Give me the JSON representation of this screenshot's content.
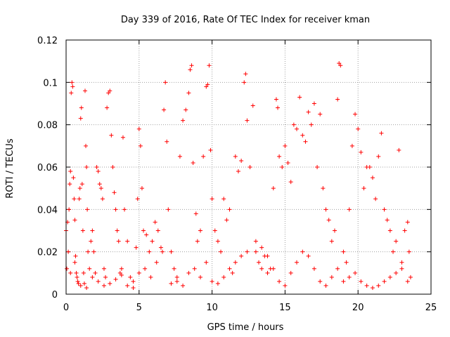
{
  "chart_data": {
    "type": "scatter",
    "title": "Day 339 of 2016, Rate Of TEC Index for receiver kman",
    "xlabel": "GPS time / hours",
    "ylabel": "ROTI / TECUs",
    "xlim": [
      0,
      25
    ],
    "ylim": [
      0,
      0.12
    ],
    "x_ticks": [
      0,
      5,
      10,
      15,
      20,
      25
    ],
    "y_ticks": [
      0,
      0.02,
      0.04,
      0.06,
      0.08,
      0.1,
      0.12
    ],
    "x_tick_labels": [
      "0",
      "5",
      "10",
      "15",
      "20",
      "25"
    ],
    "y_tick_labels": [
      "0",
      "0.02",
      "0.04",
      "0.06",
      "0.08",
      "0.1",
      "0.12"
    ],
    "grid": true,
    "marker": "plus",
    "marker_color": "#ff0000",
    "series": [
      {
        "points": [
          [
            0.0,
            0.03
          ],
          [
            0.05,
            0.012
          ],
          [
            0.1,
            0.034
          ],
          [
            0.15,
            0.02
          ],
          [
            0.2,
            0.04
          ],
          [
            0.25,
            0.052
          ],
          [
            0.3,
            0.058
          ],
          [
            0.35,
            0.095
          ],
          [
            0.4,
            0.1
          ],
          [
            0.45,
            0.098
          ],
          [
            0.5,
            0.055
          ],
          [
            0.55,
            0.045
          ],
          [
            0.6,
            0.035
          ],
          [
            0.65,
            0.018
          ],
          [
            0.7,
            0.01
          ],
          [
            0.75,
            0.008
          ],
          [
            0.8,
            0.006
          ],
          [
            0.85,
            0.005
          ],
          [
            0.9,
            0.045
          ],
          [
            0.95,
            0.05
          ],
          [
            1.0,
            0.083
          ],
          [
            1.05,
            0.088
          ],
          [
            1.1,
            0.052
          ],
          [
            1.15,
            0.03
          ],
          [
            1.2,
            0.01
          ],
          [
            1.25,
            0.005
          ],
          [
            1.3,
            0.096
          ],
          [
            1.35,
            0.07
          ],
          [
            1.4,
            0.06
          ],
          [
            1.45,
            0.04
          ],
          [
            1.5,
            0.02
          ],
          [
            1.6,
            0.012
          ],
          [
            1.7,
            0.025
          ],
          [
            1.8,
            0.03
          ],
          [
            1.9,
            0.02
          ],
          [
            2.0,
            0.01
          ],
          [
            2.1,
            0.06
          ],
          [
            2.2,
            0.058
          ],
          [
            2.3,
            0.052
          ],
          [
            2.4,
            0.05
          ],
          [
            2.5,
            0.045
          ],
          [
            2.6,
            0.012
          ],
          [
            2.7,
            0.008
          ],
          [
            2.8,
            0.088
          ],
          [
            2.9,
            0.095
          ],
          [
            3.0,
            0.096
          ],
          [
            3.1,
            0.075
          ],
          [
            3.2,
            0.06
          ],
          [
            3.3,
            0.048
          ],
          [
            3.4,
            0.04
          ],
          [
            3.5,
            0.03
          ],
          [
            3.6,
            0.025
          ],
          [
            3.7,
            0.01
          ],
          [
            3.8,
            0.012
          ],
          [
            3.9,
            0.074
          ],
          [
            4.0,
            0.04
          ],
          [
            4.2,
            0.025
          ],
          [
            4.4,
            0.008
          ],
          [
            4.6,
            0.006
          ],
          [
            4.8,
            0.022
          ],
          [
            4.9,
            0.045
          ],
          [
            5.0,
            0.078
          ],
          [
            5.1,
            0.07
          ],
          [
            5.2,
            0.05
          ],
          [
            5.3,
            0.03
          ],
          [
            5.5,
            0.028
          ],
          [
            5.7,
            0.02
          ],
          [
            5.9,
            0.025
          ],
          [
            6.1,
            0.034
          ],
          [
            6.3,
            0.03
          ],
          [
            6.5,
            0.022
          ],
          [
            6.7,
            0.087
          ],
          [
            6.8,
            0.1
          ],
          [
            6.9,
            0.072
          ],
          [
            7.0,
            0.04
          ],
          [
            7.2,
            0.02
          ],
          [
            7.4,
            0.012
          ],
          [
            7.6,
            0.008
          ],
          [
            7.8,
            0.065
          ],
          [
            8.0,
            0.082
          ],
          [
            8.2,
            0.087
          ],
          [
            8.4,
            0.095
          ],
          [
            8.5,
            0.106
          ],
          [
            8.6,
            0.108
          ],
          [
            8.7,
            0.062
          ],
          [
            8.9,
            0.038
          ],
          [
            9.0,
            0.025
          ],
          [
            9.2,
            0.03
          ],
          [
            9.4,
            0.065
          ],
          [
            9.6,
            0.098
          ],
          [
            9.7,
            0.099
          ],
          [
            9.8,
            0.108
          ],
          [
            9.9,
            0.068
          ],
          [
            10.0,
            0.045
          ],
          [
            10.2,
            0.03
          ],
          [
            10.4,
            0.025
          ],
          [
            10.6,
            0.02
          ],
          [
            10.8,
            0.045
          ],
          [
            11.0,
            0.035
          ],
          [
            11.2,
            0.04
          ],
          [
            11.4,
            0.01
          ],
          [
            11.6,
            0.065
          ],
          [
            11.8,
            0.058
          ],
          [
            12.0,
            0.063
          ],
          [
            12.2,
            0.1
          ],
          [
            12.3,
            0.104
          ],
          [
            12.4,
            0.082
          ],
          [
            12.6,
            0.06
          ],
          [
            12.8,
            0.089
          ],
          [
            13.0,
            0.02
          ],
          [
            13.2,
            0.015
          ],
          [
            13.4,
            0.012
          ],
          [
            13.6,
            0.018
          ],
          [
            13.8,
            0.01
          ],
          [
            14.0,
            0.012
          ],
          [
            14.2,
            0.05
          ],
          [
            14.4,
            0.092
          ],
          [
            14.5,
            0.088
          ],
          [
            14.6,
            0.065
          ],
          [
            14.8,
            0.06
          ],
          [
            15.0,
            0.07
          ],
          [
            15.2,
            0.062
          ],
          [
            15.4,
            0.053
          ],
          [
            15.6,
            0.08
          ],
          [
            15.8,
            0.078
          ],
          [
            16.0,
            0.093
          ],
          [
            16.2,
            0.075
          ],
          [
            16.4,
            0.072
          ],
          [
            16.6,
            0.086
          ],
          [
            16.8,
            0.08
          ],
          [
            17.0,
            0.09
          ],
          [
            17.2,
            0.06
          ],
          [
            17.4,
            0.085
          ],
          [
            17.6,
            0.05
          ],
          [
            17.8,
            0.04
          ],
          [
            18.0,
            0.035
          ],
          [
            18.2,
            0.025
          ],
          [
            18.4,
            0.03
          ],
          [
            18.6,
            0.092
          ],
          [
            18.7,
            0.109
          ],
          [
            18.8,
            0.108
          ],
          [
            19.0,
            0.02
          ],
          [
            19.2,
            0.015
          ],
          [
            19.4,
            0.04
          ],
          [
            19.6,
            0.07
          ],
          [
            19.8,
            0.085
          ],
          [
            20.0,
            0.078
          ],
          [
            20.2,
            0.067
          ],
          [
            20.4,
            0.05
          ],
          [
            20.6,
            0.06
          ],
          [
            20.8,
            0.06
          ],
          [
            21.0,
            0.055
          ],
          [
            21.2,
            0.045
          ],
          [
            21.4,
            0.065
          ],
          [
            21.6,
            0.076
          ],
          [
            21.8,
            0.04
          ],
          [
            22.0,
            0.035
          ],
          [
            22.2,
            0.03
          ],
          [
            22.4,
            0.02
          ],
          [
            22.6,
            0.025
          ],
          [
            22.8,
            0.068
          ],
          [
            23.0,
            0.015
          ],
          [
            23.2,
            0.03
          ],
          [
            23.4,
            0.034
          ],
          [
            23.5,
            0.02
          ],
          [
            23.6,
            0.008
          ],
          [
            0.3,
            0.01
          ],
          [
            0.6,
            0.015
          ],
          [
            1.0,
            0.004
          ],
          [
            1.4,
            0.003
          ],
          [
            1.8,
            0.008
          ],
          [
            2.2,
            0.006
          ],
          [
            2.6,
            0.004
          ],
          [
            3.0,
            0.005
          ],
          [
            3.4,
            0.007
          ],
          [
            3.8,
            0.009
          ],
          [
            4.2,
            0.004
          ],
          [
            4.6,
            0.003
          ],
          [
            5.0,
            0.01
          ],
          [
            5.4,
            0.012
          ],
          [
            5.8,
            0.008
          ],
          [
            6.2,
            0.015
          ],
          [
            6.6,
            0.02
          ],
          [
            7.2,
            0.005
          ],
          [
            7.6,
            0.006
          ],
          [
            8.0,
            0.004
          ],
          [
            8.4,
            0.01
          ],
          [
            8.8,
            0.012
          ],
          [
            9.2,
            0.008
          ],
          [
            9.6,
            0.015
          ],
          [
            10.0,
            0.006
          ],
          [
            10.4,
            0.005
          ],
          [
            10.8,
            0.008
          ],
          [
            11.2,
            0.012
          ],
          [
            11.6,
            0.015
          ],
          [
            12.0,
            0.018
          ],
          [
            12.4,
            0.02
          ],
          [
            13.0,
            0.025
          ],
          [
            13.4,
            0.022
          ],
          [
            13.8,
            0.018
          ],
          [
            14.2,
            0.012
          ],
          [
            14.6,
            0.006
          ],
          [
            15.0,
            0.004
          ],
          [
            15.4,
            0.01
          ],
          [
            15.8,
            0.015
          ],
          [
            16.2,
            0.02
          ],
          [
            16.6,
            0.018
          ],
          [
            17.0,
            0.012
          ],
          [
            17.4,
            0.006
          ],
          [
            17.8,
            0.004
          ],
          [
            18.2,
            0.008
          ],
          [
            18.6,
            0.012
          ],
          [
            19.0,
            0.006
          ],
          [
            19.4,
            0.008
          ],
          [
            19.8,
            0.01
          ],
          [
            20.2,
            0.006
          ],
          [
            20.6,
            0.004
          ],
          [
            21.0,
            0.003
          ],
          [
            21.4,
            0.004
          ],
          [
            21.8,
            0.006
          ],
          [
            22.2,
            0.008
          ],
          [
            22.6,
            0.01
          ],
          [
            23.0,
            0.012
          ],
          [
            23.4,
            0.006
          ]
        ]
      }
    ]
  }
}
